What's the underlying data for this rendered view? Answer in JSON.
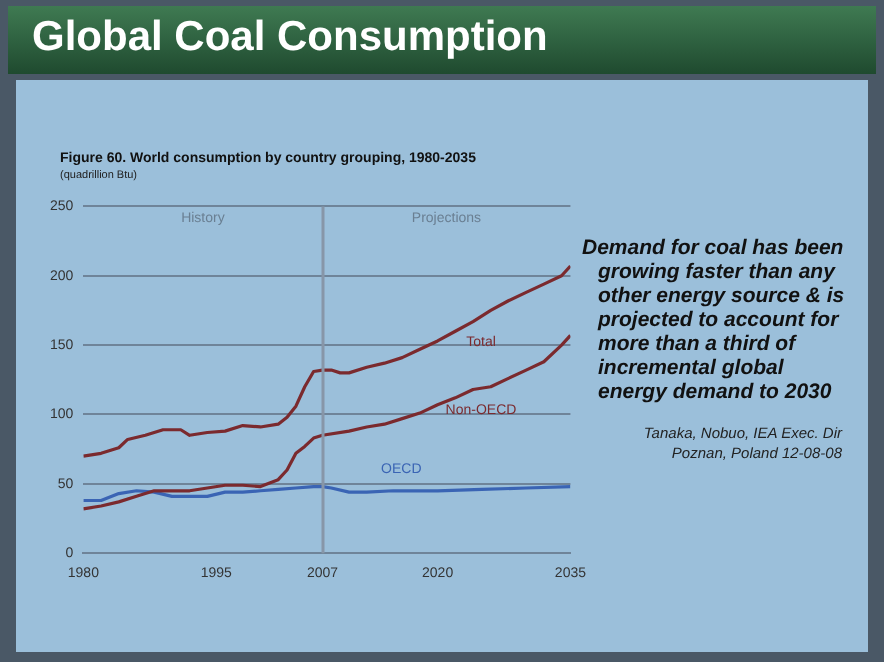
{
  "chart_data": {
    "type": "line",
    "title": "Global Coal Consumption",
    "subtitle": "Figure 60. World consumption by country grouping, 1980-2035",
    "ylabel": "(quadrillion Btu)",
    "xlim": [
      1980,
      2035
    ],
    "xticks": [
      1980,
      1995,
      2007,
      2020,
      2035
    ],
    "ylim": [
      0,
      250
    ],
    "yticks": [
      0,
      50,
      100,
      150,
      200,
      250
    ],
    "grid": "y",
    "marker": "none",
    "line_style": "solid",
    "ref_lines": [
      {
        "axis": "x",
        "value": 2007,
        "color": "#8796a8"
      }
    ],
    "series": [
      {
        "name": "Total",
        "color": "#7b2a2e",
        "x": [
          1980,
          1982,
          1983,
          1984,
          1985,
          1987,
          1989,
          1991,
          1992,
          1994,
          1996,
          1998,
          2000,
          2002,
          2003,
          2004,
          2005,
          2006,
          2007,
          2008,
          2009,
          2010,
          2012,
          2014,
          2016,
          2018,
          2020,
          2022,
          2024,
          2026,
          2028,
          2030,
          2032,
          2034,
          2035
        ],
        "values": [
          70,
          72,
          74,
          76,
          82,
          85,
          89,
          89,
          85,
          87,
          88,
          92,
          91,
          93,
          98,
          106,
          120,
          131,
          132,
          132,
          130,
          130,
          134,
          137,
          141,
          147,
          153,
          160,
          167,
          175,
          182,
          188,
          194,
          200,
          207
        ]
      },
      {
        "name": "Non-OECD",
        "color": "#7b2a2e",
        "x": [
          1980,
          1982,
          1984,
          1986,
          1988,
          1990,
          1992,
          1994,
          1996,
          1998,
          2000,
          2002,
          2003,
          2004,
          2005,
          2006,
          2007,
          2010,
          2012,
          2014,
          2016,
          2018,
          2020,
          2022,
          2024,
          2026,
          2028,
          2030,
          2032,
          2034,
          2035
        ],
        "values": [
          32,
          34,
          37,
          41,
          45,
          45,
          45,
          47,
          49,
          49,
          48,
          53,
          60,
          72,
          77,
          83,
          85,
          88,
          91,
          93,
          97,
          101,
          107,
          112,
          118,
          120,
          126,
          132,
          138,
          150,
          157
        ]
      },
      {
        "name": "OECD",
        "color": "#3a64b4",
        "x": [
          1980,
          1982,
          1984,
          1986,
          1988,
          1990,
          1992,
          1994,
          1996,
          1998,
          2000,
          2002,
          2004,
          2006,
          2007,
          2008,
          2010,
          2012,
          2015,
          2020,
          2025,
          2030,
          2035
        ],
        "values": [
          38,
          38,
          43,
          45,
          44,
          41,
          41,
          41,
          44,
          44,
          45,
          46,
          47,
          48,
          48,
          47,
          44,
          44,
          45,
          45,
          46,
          47,
          48
        ]
      }
    ],
    "annotations": [
      "History",
      "Projections",
      "Demand for coal has been growing faster than any other energy source & is projected to account for more than a third of incremental global energy demand to 2030",
      "Tanaka, Nobuo, IEA Exec. Dir\nPoznan, Poland 12-08-08"
    ]
  }
}
